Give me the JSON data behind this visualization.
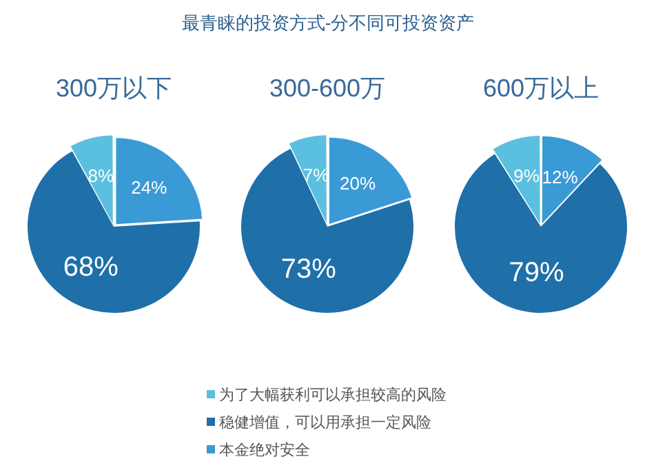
{
  "chart_data": [
    {
      "type": "other",
      "title": "最青睐的投资方式-分不同可投资资产"
    },
    {
      "type": "pie",
      "subtitle": "300万以下",
      "values": [
        24,
        68,
        8
      ],
      "value_labels": [
        "24%",
        "68%",
        "8%"
      ],
      "colors": [
        "#3a9ad6",
        "#1f6fa8",
        "#5bc0e0"
      ]
    },
    {
      "type": "pie",
      "subtitle": "300-600万",
      "categories": [
        "本金绝对安全",
        "稳健增值，可以用承担一定风险",
        "为了大幅获利可以承担较高的风险"
      ],
      "values": [
        20,
        73,
        7
      ],
      "value_labels": [
        "20%",
        "73%",
        "7%"
      ],
      "colors": [
        "#3a9ad6",
        "#1f6fa8",
        "#5bc0e0"
      ],
      "legend": "bottom"
    },
    {
      "type": "pie",
      "subtitle": "600万以上",
      "values": [
        12,
        79,
        9
      ],
      "value_labels": [
        "12%",
        "79%",
        "9%"
      ],
      "colors": [
        "#3a9ad6",
        "#1f6fa8",
        "#5bc0e0"
      ]
    }
  ]
}
